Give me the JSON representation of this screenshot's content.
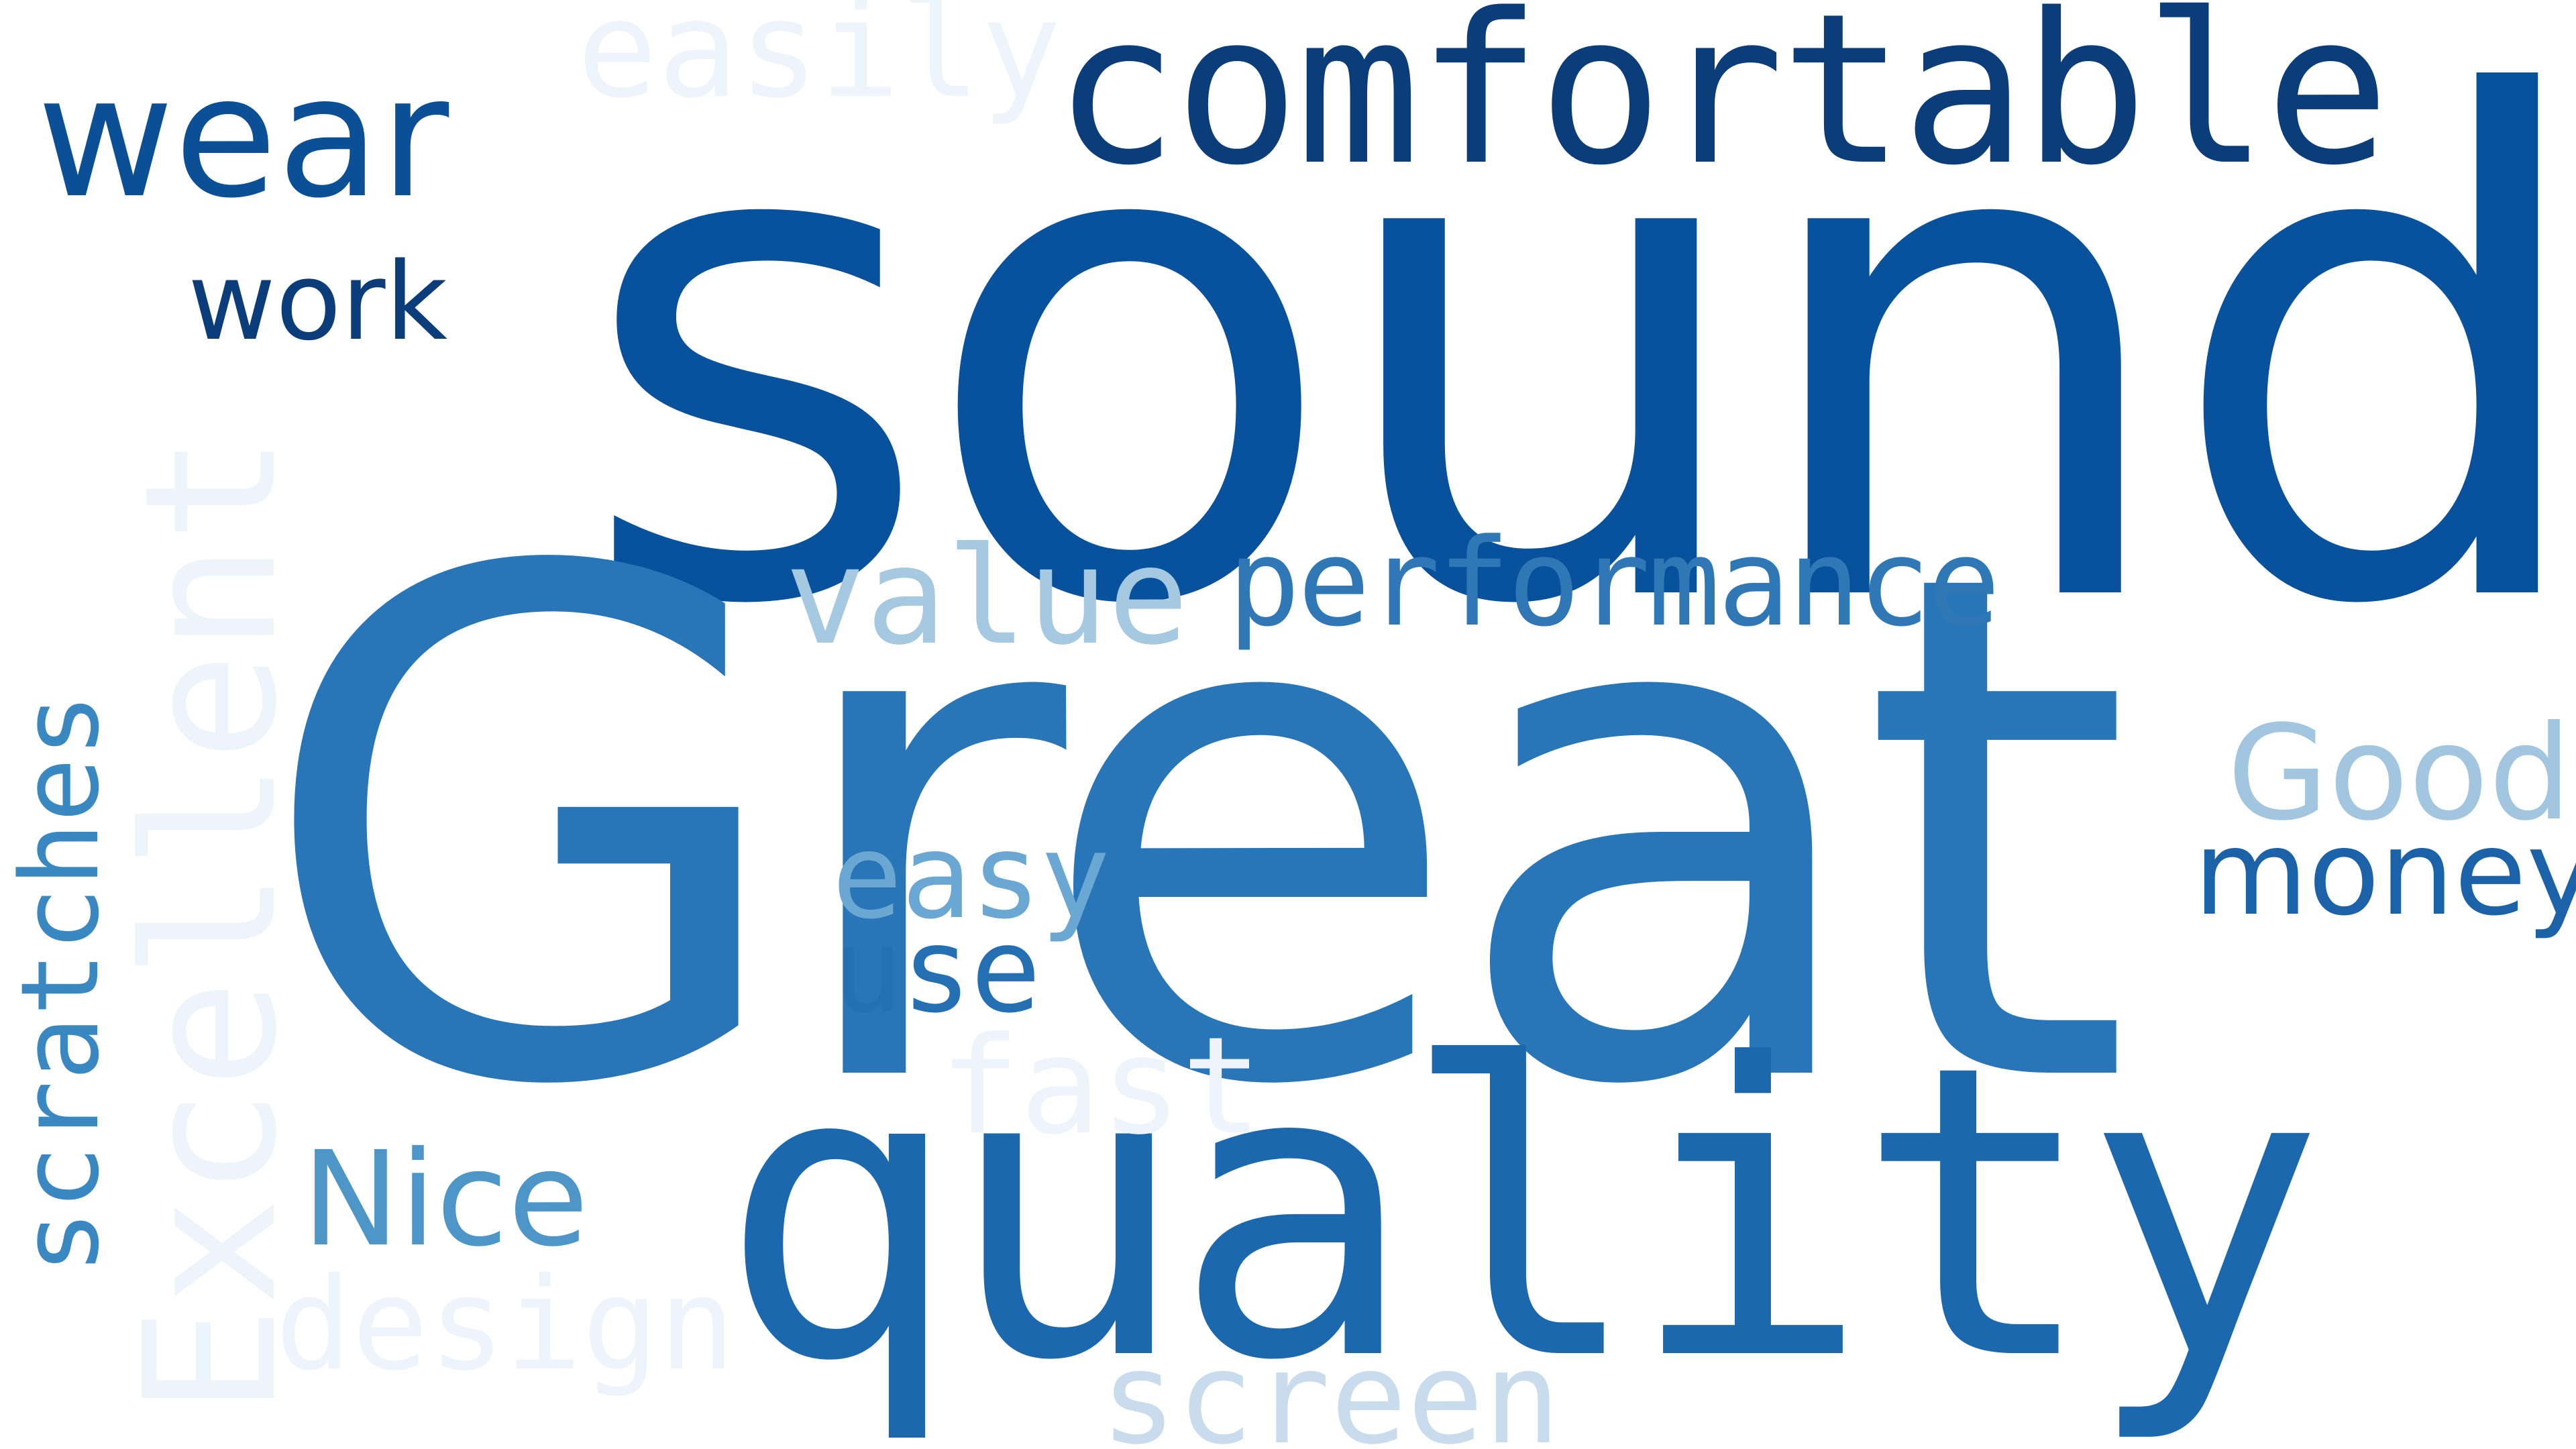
{
  "words": [
    {
      "text": "sound",
      "color": "#08519c"
    },
    {
      "text": "Great",
      "color": "#2875b8"
    },
    {
      "text": "quality",
      "color": "#1c68ae"
    },
    {
      "text": "comfortable",
      "color": "#0a3d7a"
    },
    {
      "text": "wear",
      "color": "#0b4f96"
    },
    {
      "text": "easily",
      "color": "#eef4fb"
    },
    {
      "text": "work",
      "color": "#0a3d7a"
    },
    {
      "text": "Excellent",
      "color": "#edf4fc"
    },
    {
      "text": "scratches",
      "color": "#3a88c2"
    },
    {
      "text": "value",
      "color": "#a6c9e2"
    },
    {
      "text": "performance",
      "color": "#2f78b5"
    },
    {
      "text": "Good",
      "color": "#a3c6e0"
    },
    {
      "text": "money",
      "color": "#1c62a8"
    },
    {
      "text": "easy",
      "color": "#6aa7d2"
    },
    {
      "text": "use",
      "color": "#2470b2"
    },
    {
      "text": "fast",
      "color": "#eef4fb"
    },
    {
      "text": "Nice",
      "color": "#4f96c8"
    },
    {
      "text": "design",
      "color": "#eef4fb"
    },
    {
      "text": "screen",
      "color": "#c8dcee"
    }
  ]
}
